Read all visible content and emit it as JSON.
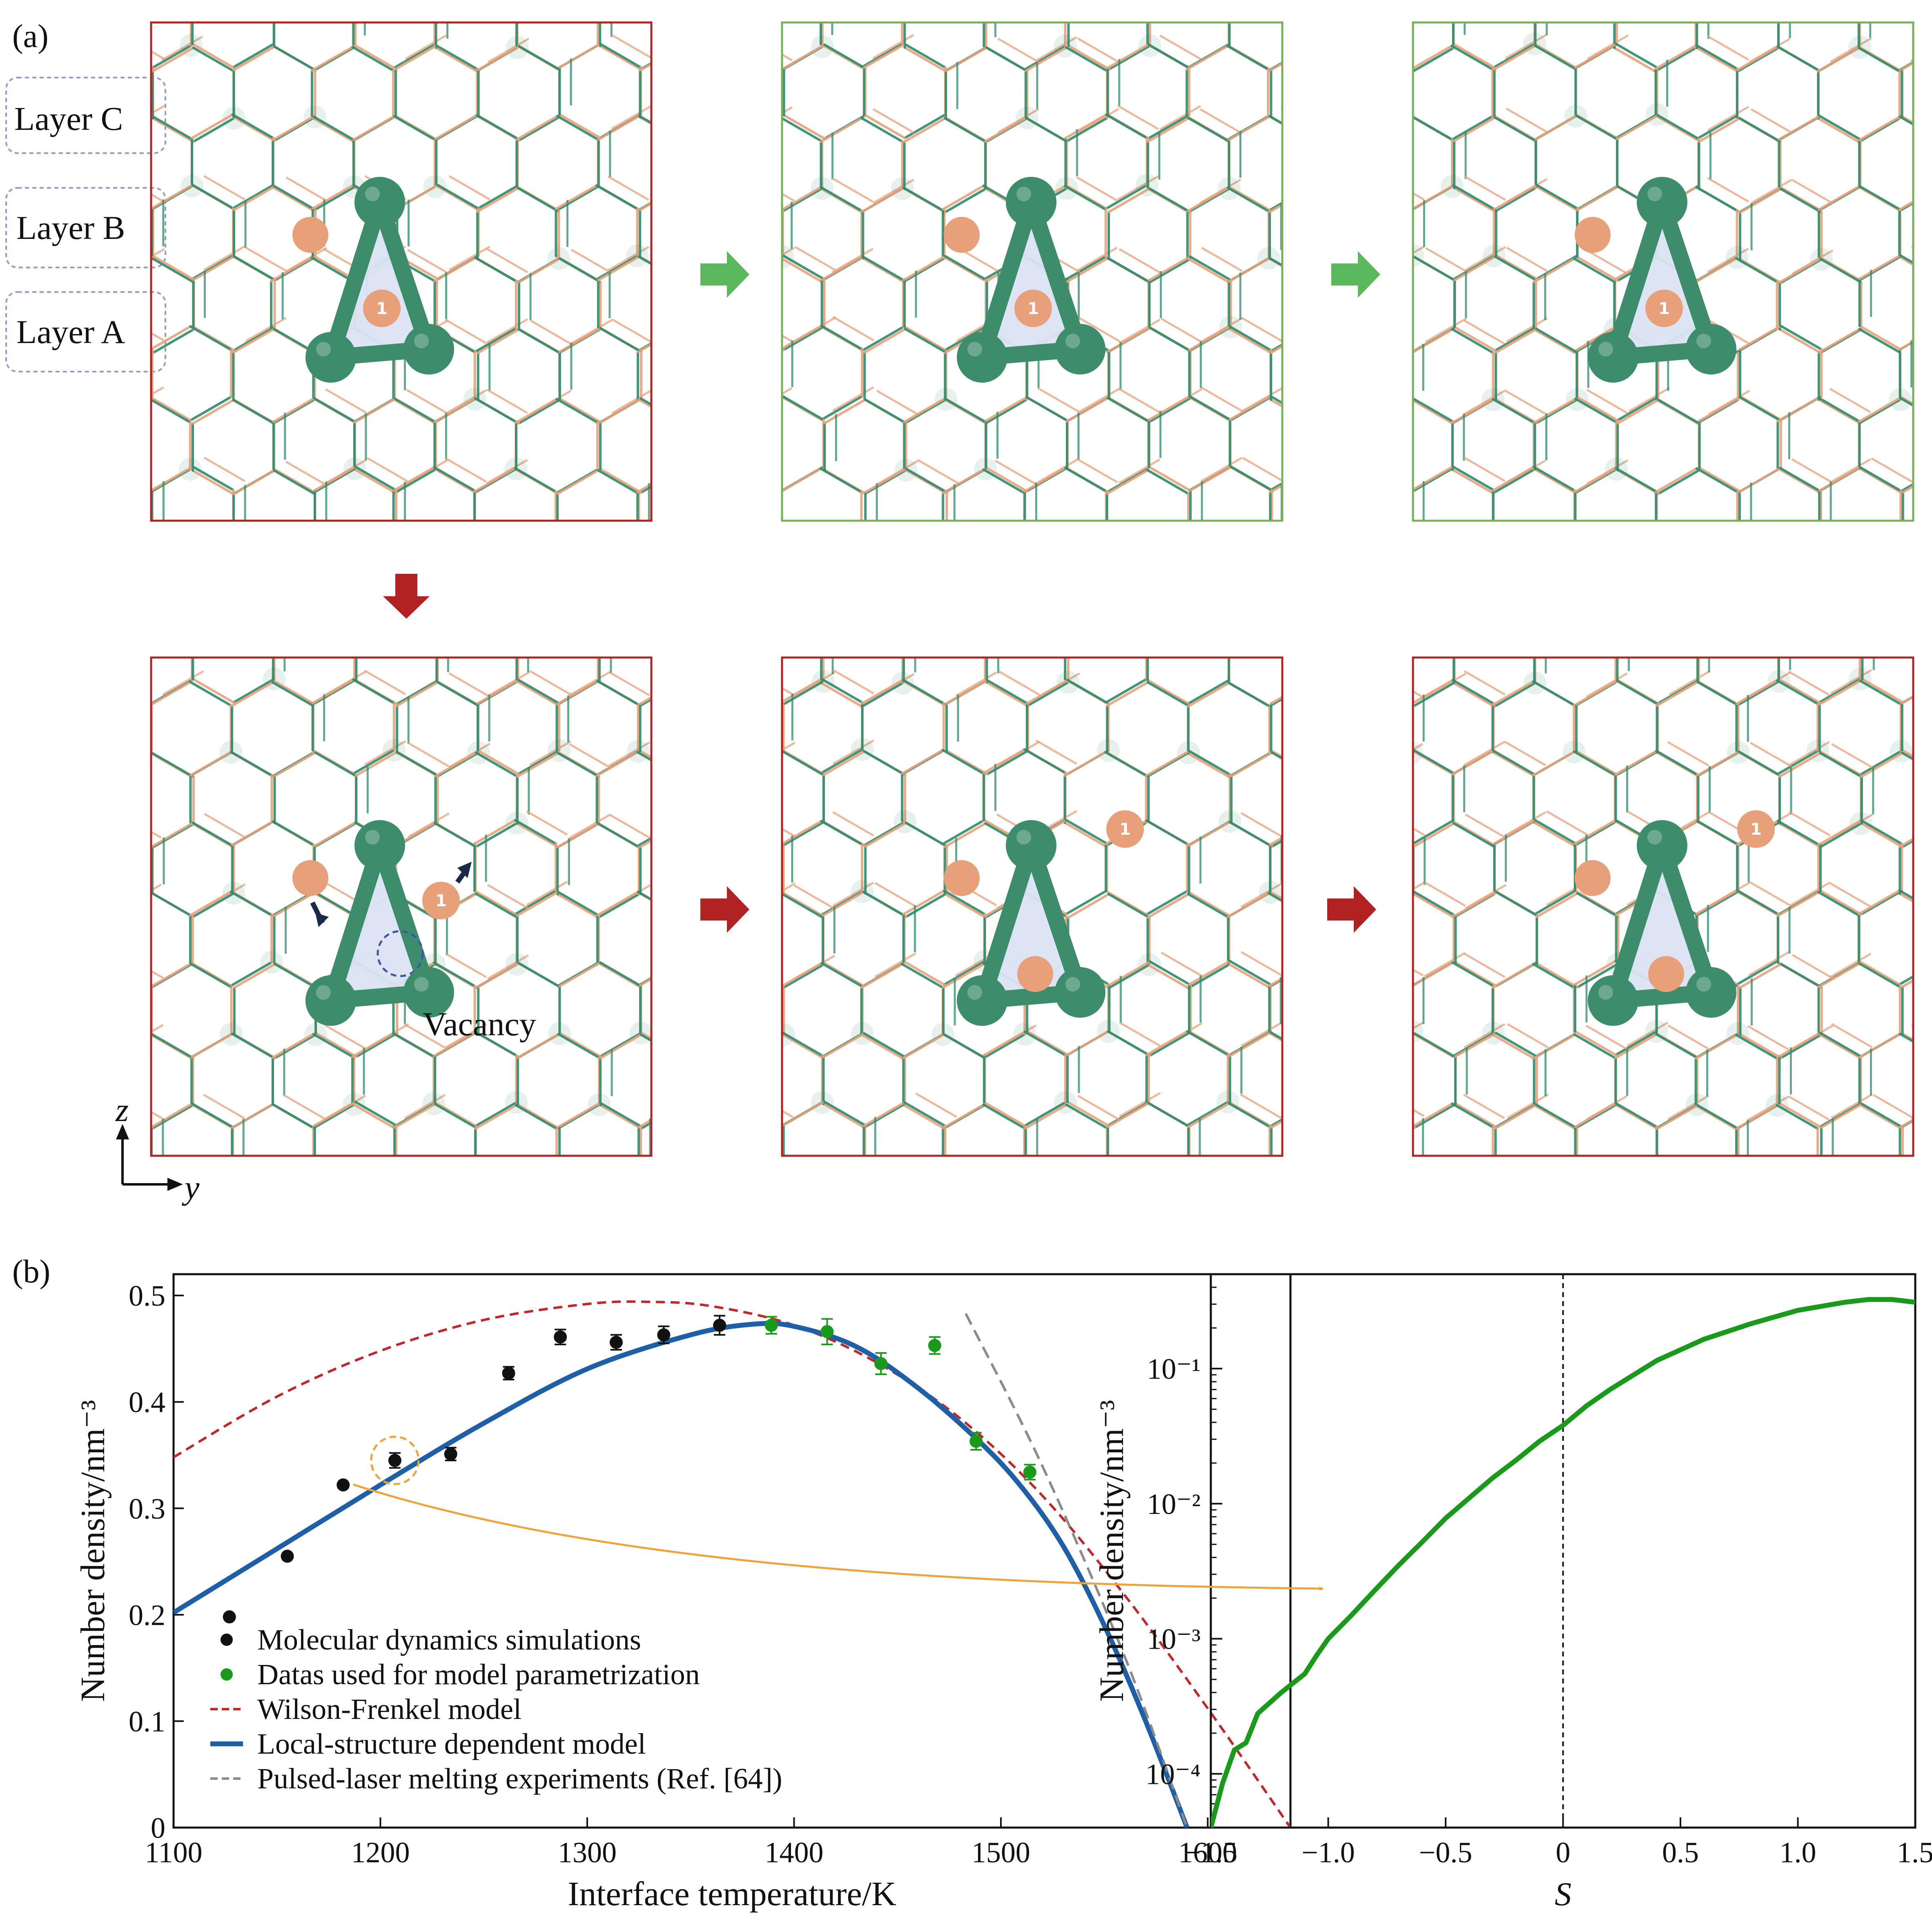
{
  "panel_a": {
    "label": "(a)",
    "layers": [
      "Layer C",
      "Layer B",
      "Layer A"
    ],
    "vacancy_label": "Vacancy",
    "site_badge": "1",
    "axes": {
      "vertical": "z",
      "horizontal": "y"
    },
    "frames": [
      {
        "row": 1,
        "col": 1,
        "outcome": "start",
        "frame_color": "#b22424",
        "badge_atom": "center"
      },
      {
        "row": 1,
        "col": 2,
        "outcome": "recovered",
        "frame_color": "#78b05a",
        "badge_atom": "center"
      },
      {
        "row": 1,
        "col": 3,
        "outcome": "recovered",
        "frame_color": "#78b05a",
        "badge_atom": "center"
      },
      {
        "row": 2,
        "col": 1,
        "outcome": "vacancy",
        "frame_color": "#b22424",
        "badge_atom": "right"
      },
      {
        "row": 2,
        "col": 2,
        "outcome": "defect",
        "frame_color": "#b22424",
        "badge_atom": "outer"
      },
      {
        "row": 2,
        "col": 3,
        "outcome": "defect",
        "frame_color": "#b22424",
        "badge_atom": "outer"
      }
    ],
    "colors": {
      "bond_green": "#2e8b6b",
      "bond_orange": "#e8a27c",
      "atom_green": "#3d8d6c",
      "atom_orange": "#e7a07a",
      "arrow_green": "#5cb85c",
      "arrow_red": "#b22222",
      "triangle_fill": "#dbe4f3"
    }
  },
  "panel_b": {
    "label": "(b)",
    "chart_data": [
      {
        "type": "scatter",
        "title": "",
        "xlabel": "Interface temperature/K",
        "ylabel": "Number density/nm⁻³",
        "xlim": [
          1100,
          1640
        ],
        "ylim": [
          0,
          0.52
        ],
        "xticks": [
          "1100",
          "1200",
          "1300",
          "1400",
          "1500",
          "1600"
        ],
        "yticks": [
          "0",
          "0.1",
          "0.2",
          "0.3",
          "0.4",
          "0.5"
        ],
        "series": [
          {
            "name": "Molecular dynamics simulations",
            "kind": "points",
            "color": "#111111",
            "x": [
              1127,
              1155,
              1182,
              1207,
              1234,
              1262,
              1287,
              1314,
              1337,
              1364
            ],
            "y": [
              0.198,
              0.255,
              0.322,
              0.345,
              0.351,
              0.427,
              0.461,
              0.456,
              0.463,
              0.472
            ],
            "err": [
              0,
              0,
              0,
              0.007,
              0.006,
              0.006,
              0.007,
              0.007,
              0.008,
              0.009
            ]
          },
          {
            "name": "Datas used for model parametrization",
            "kind": "points",
            "color": "#1a9a1a",
            "x": [
              1389,
              1416,
              1442,
              1468,
              1488,
              1514
            ],
            "y": [
              0.472,
              0.466,
              0.436,
              0.453,
              0.363,
              0.334
            ],
            "err": [
              0.008,
              0.012,
              0.01,
              0.008,
              0.008,
              0.007
            ]
          },
          {
            "name": "Wilson-Frenkel model",
            "kind": "line",
            "style": "dashed",
            "color": "#c0282a",
            "x": [
              1100,
              1150,
              1200,
              1250,
              1300,
              1330,
              1360,
              1400,
              1440,
              1480,
              1520,
              1560,
              1600,
              1640
            ],
            "y": [
              0.348,
              0.405,
              0.448,
              0.477,
              0.492,
              0.494,
              0.49,
              0.472,
              0.437,
              0.385,
              0.312,
              0.218,
              0.112,
              0.0
            ]
          },
          {
            "name": "Local-structure dependent model",
            "kind": "line",
            "style": "solid",
            "color": "#1f5fa8",
            "x": [
              1100,
              1150,
              1200,
              1250,
              1300,
              1350,
              1380,
              1400,
              1430,
              1460,
              1490,
              1510,
              1530,
              1550,
              1570,
              1590
            ],
            "y": [
              0.202,
              0.262,
              0.322,
              0.38,
              0.431,
              0.463,
              0.473,
              0.471,
              0.452,
              0.413,
              0.362,
              0.32,
              0.265,
              0.19,
              0.1,
              0.0
            ]
          },
          {
            "name": "Pulsed-laser melting experiments (Ref. [64])",
            "kind": "line",
            "style": "dashed",
            "color": "#8a8a8a",
            "x": [
              1483,
              1520,
              1560,
              1590
            ],
            "y": [
              0.483,
              0.34,
              0.16,
              0.0
            ]
          }
        ],
        "highlight": {
          "x": 1207,
          "y": 0.345,
          "color": "#f0a33a"
        },
        "legend": "lower-left"
      },
      {
        "type": "line",
        "title": "",
        "xlabel": "S",
        "ylabel": "Number density/nm⁻³",
        "yscale": "log",
        "xlim": [
          -1.5,
          1.5
        ],
        "ylim": [
          4e-05,
          0.5
        ],
        "xticks": [
          "−1.5",
          "−1.0",
          "−0.5",
          "0",
          "0.5",
          "1.0",
          "1.5"
        ],
        "yticks": [
          "10⁻⁴",
          "10⁻³",
          "10⁻²",
          "10⁻¹"
        ],
        "vline_x": 0,
        "series": [
          {
            "name": "",
            "color": "#1a9a1a",
            "x": [
              -1.5,
              -1.45,
              -1.4,
              -1.35,
              -1.3,
              -1.2,
              -1.1,
              -1.05,
              -1.0,
              -0.9,
              -0.8,
              -0.7,
              -0.6,
              -0.5,
              -0.4,
              -0.3,
              -0.2,
              -0.1,
              0.0,
              0.1,
              0.2,
              0.4,
              0.6,
              0.8,
              1.0,
              1.2,
              1.3,
              1.4,
              1.5
            ],
            "y": [
              4e-05,
              8.5e-05,
              0.00015,
              0.00017,
              0.00028,
              0.0004,
              0.00055,
              0.00075,
              0.001,
              0.0015,
              0.0023,
              0.0035,
              0.0052,
              0.0078,
              0.011,
              0.0155,
              0.021,
              0.029,
              0.038,
              0.053,
              0.07,
              0.115,
              0.165,
              0.215,
              0.27,
              0.31,
              0.325,
              0.325,
              0.31
            ]
          }
        ]
      }
    ],
    "connector_color": "#f0a33a"
  }
}
